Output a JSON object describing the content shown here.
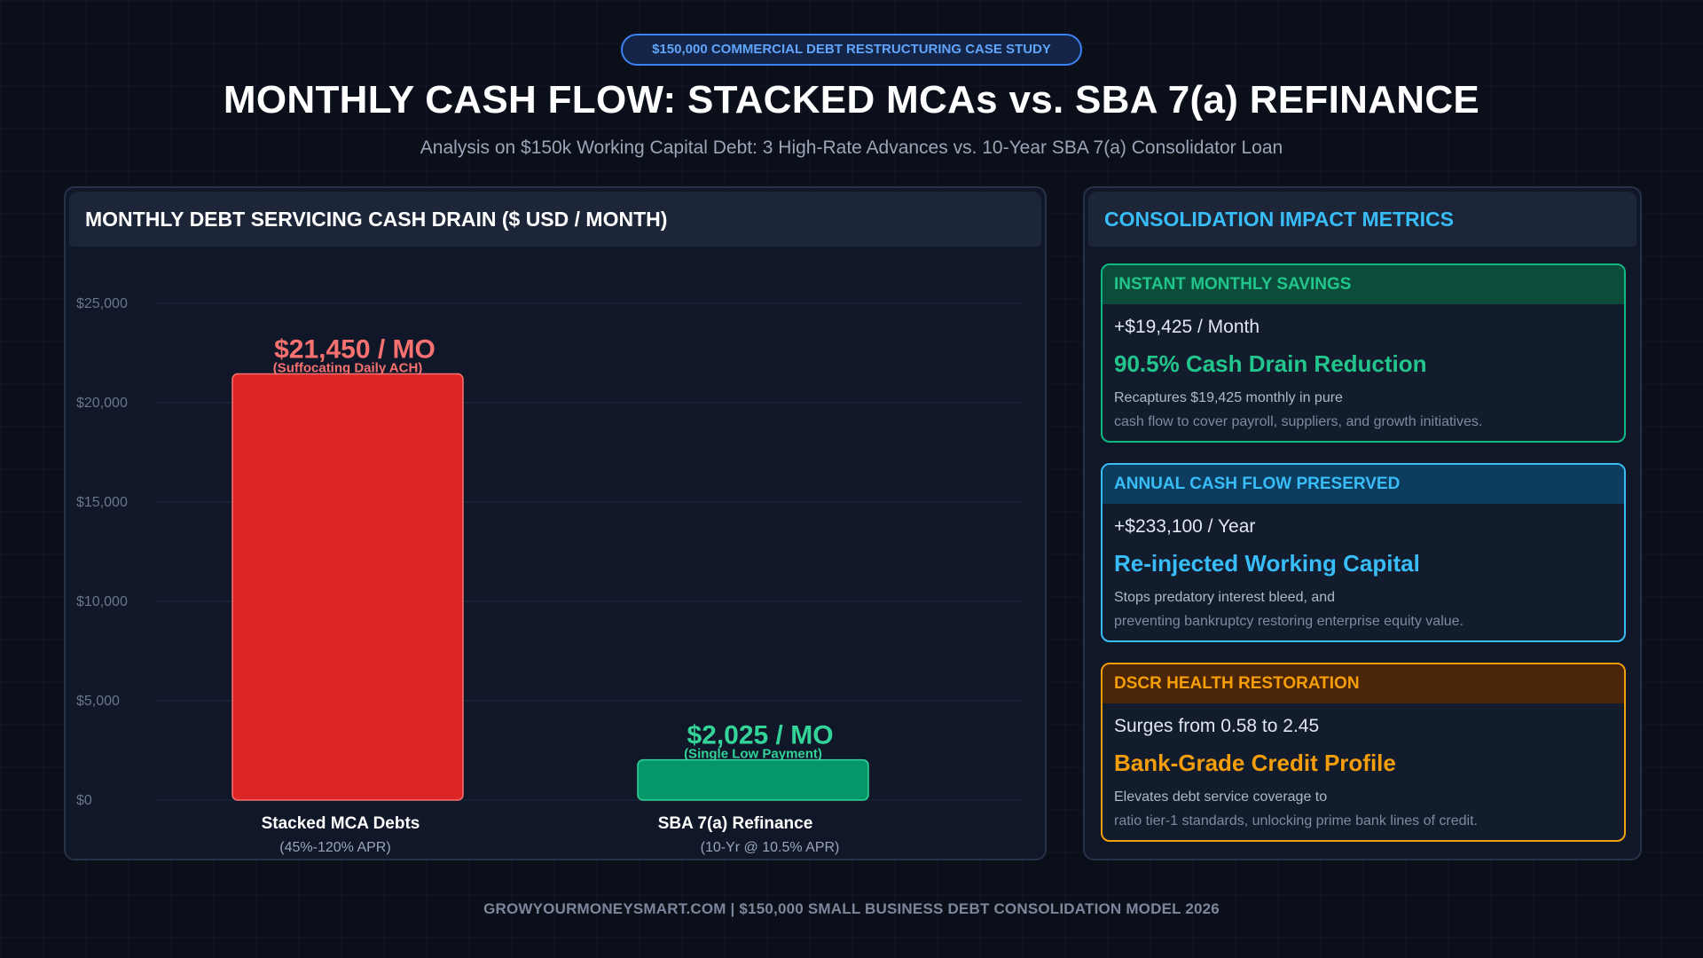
{
  "badge": "$150,000 COMMERCIAL DEBT RESTRUCTURING CASE STUDY",
  "title": "MONTHLY CASH FLOW: STACKED MCAs vs. SBA 7(a) REFINANCE",
  "subtitle": "Analysis on $150k Working Capital Debt: 3 High-Rate Advances vs. 10-Year SBA 7(a) Consolidator Loan",
  "chart_panel_title": "MONTHLY DEBT SERVICING CASH DRAIN ($ USD / MONTH)",
  "chart_data": {
    "type": "bar",
    "categories": [
      "Stacked MCA Debts",
      "SBA 7(a) Refinance"
    ],
    "category_sublabels": [
      "(45%-120% APR)",
      "(10-Yr @ 10.5% APR)"
    ],
    "values": [
      21450,
      2025
    ],
    "value_labels": [
      "$21,450 / MO",
      "$2,025 / MO"
    ],
    "value_sublabels": [
      "(Suffocating Daily ACH)",
      "(Single Low Payment)"
    ],
    "colors": [
      "#dc2626",
      "#059669"
    ],
    "label_colors": [
      "#f87171",
      "#34d399"
    ],
    "ylim": [
      0,
      25000
    ],
    "yticks": [
      0,
      5000,
      10000,
      15000,
      20000,
      25000
    ],
    "ytick_labels": [
      "$0",
      "$5,000",
      "$10,000",
      "$15,000",
      "$20,000",
      "$25,000"
    ],
    "grid": true
  },
  "metrics_panel_title": "CONSOLIDATION IMPACT METRICS",
  "metrics": [
    {
      "header": "INSTANT MONTHLY SAVINGS",
      "line1": "+$19,425 / Month",
      "headline": "90.5% Cash Drain Reduction",
      "desc1": "Recaptures $19,425 monthly in pure",
      "desc2": "cash flow to cover payroll, suppliers, and growth initiatives."
    },
    {
      "header": "ANNUAL CASH FLOW PRESERVED",
      "line1": "+$233,100 / Year",
      "headline": "Re-injected Working Capital",
      "desc1": "Stops predatory interest bleed, and",
      "desc2": "preventing bankruptcy restoring enterprise equity value."
    },
    {
      "header": "DSCR HEALTH RESTORATION",
      "line1": "Surges from 0.58 to 2.45",
      "headline": "Bank-Grade Credit Profile",
      "desc1": "Elevates debt service coverage to",
      "desc2": "ratio tier-1 standards, unlocking prime bank lines of credit."
    }
  ],
  "footer": "GROWYOURMONEYSMART.COM  |  $150,000 SMALL BUSINESS DEBT CONSOLIDATION MODEL 2026"
}
